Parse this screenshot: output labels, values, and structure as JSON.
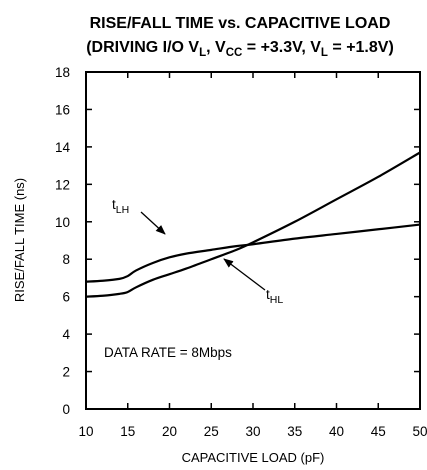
{
  "chart_data": {
    "type": "line",
    "title_line1": "RISE/FALL TIME vs. CAPACITIVE LOAD",
    "title_line2": {
      "prefix": "(DRIVING I/O V",
      "sub1": "L",
      "mid1": ", V",
      "sub2": "CC",
      "mid2": " = +3.3V, V",
      "sub3": "L",
      "suffix": " = +1.8V)"
    },
    "xlabel": "CAPACITIVE LOAD (pF)",
    "ylabel": "RISE/FALL TIME (ns)",
    "xlim": [
      10,
      50
    ],
    "ylim": [
      0,
      18
    ],
    "xticks": [
      10,
      15,
      20,
      25,
      30,
      35,
      40,
      45,
      50
    ],
    "yticks": [
      0,
      2,
      4,
      6,
      8,
      10,
      12,
      14,
      16,
      18
    ],
    "grid": false,
    "annotation": "DATA RATE = 8Mbps",
    "series": [
      {
        "name": "t_LH",
        "label_main": "t",
        "label_sub": "LH",
        "x": [
          10,
          12,
          14,
          15,
          16,
          18,
          20,
          22,
          25,
          28,
          30,
          35,
          40,
          45,
          50
        ],
        "y": [
          6.8,
          6.85,
          6.95,
          7.1,
          7.4,
          7.8,
          8.1,
          8.3,
          8.5,
          8.7,
          8.8,
          9.1,
          9.35,
          9.6,
          9.85
        ]
      },
      {
        "name": "t_HL",
        "label_main": "t",
        "label_sub": "HL",
        "x": [
          10,
          12,
          14,
          15,
          16,
          18,
          20,
          22,
          25,
          28,
          30,
          35,
          40,
          45,
          50
        ],
        "y": [
          6.0,
          6.05,
          6.15,
          6.25,
          6.5,
          6.9,
          7.2,
          7.5,
          8.0,
          8.5,
          8.9,
          10.0,
          11.2,
          12.4,
          13.7
        ]
      }
    ]
  }
}
